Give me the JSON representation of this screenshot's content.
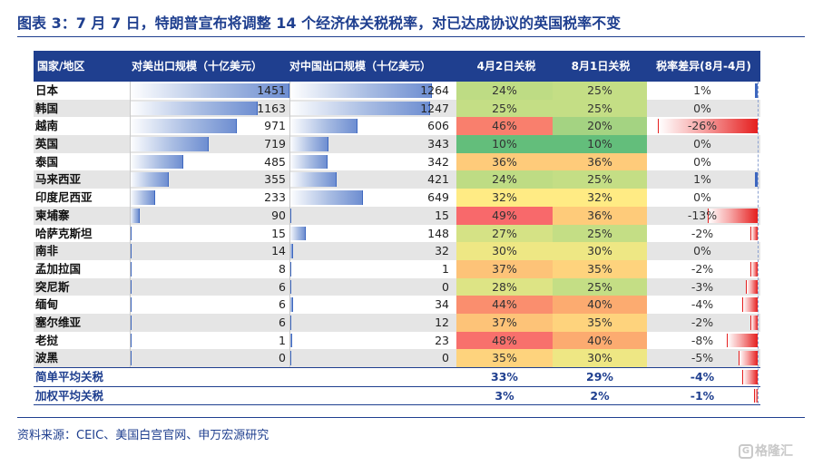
{
  "title": "图表 3：7 月 7 日，特朗普宣布将调整 14 个经济体关税税率，对已达成协议的英国税率不变",
  "headers": {
    "country": "国家/地区",
    "us_exports": "对美出口规模（十亿美元）",
    "cn_exports": "对中国出口规模（十亿美元）",
    "apr2": "4月2日关税",
    "aug1": "8月1日关税",
    "diff": "税率差异(8月-4月)"
  },
  "rows": [
    {
      "name": "日本",
      "us": "1451",
      "cn": "1264",
      "apr2": "24%",
      "aug1": "25%",
      "diff": "1%"
    },
    {
      "name": "韩国",
      "us": "1163",
      "cn": "1247",
      "apr2": "25%",
      "aug1": "25%",
      "diff": "0%"
    },
    {
      "name": "越南",
      "us": "971",
      "cn": "606",
      "apr2": "46%",
      "aug1": "20%",
      "diff": "-26%"
    },
    {
      "name": "英国",
      "us": "719",
      "cn": "343",
      "apr2": "10%",
      "aug1": "10%",
      "diff": "0%"
    },
    {
      "name": "泰国",
      "us": "485",
      "cn": "342",
      "apr2": "36%",
      "aug1": "36%",
      "diff": "0%"
    },
    {
      "name": "马来西亚",
      "us": "355",
      "cn": "421",
      "apr2": "24%",
      "aug1": "25%",
      "diff": "1%"
    },
    {
      "name": "印度尼西亚",
      "us": "233",
      "cn": "649",
      "apr2": "32%",
      "aug1": "32%",
      "diff": "0%"
    },
    {
      "name": "柬埔寨",
      "us": "90",
      "cn": "15",
      "apr2": "49%",
      "aug1": "36%",
      "diff": "-13%"
    },
    {
      "name": "哈萨克斯坦",
      "us": "15",
      "cn": "148",
      "apr2": "27%",
      "aug1": "25%",
      "diff": "-2%"
    },
    {
      "name": "南非",
      "us": "14",
      "cn": "32",
      "apr2": "30%",
      "aug1": "30%",
      "diff": "0%"
    },
    {
      "name": "孟加拉国",
      "us": "8",
      "cn": "1",
      "apr2": "37%",
      "aug1": "35%",
      "diff": "-2%"
    },
    {
      "name": "突尼斯",
      "us": "6",
      "cn": "0",
      "apr2": "28%",
      "aug1": "25%",
      "diff": "-3%"
    },
    {
      "name": "缅甸",
      "us": "6",
      "cn": "34",
      "apr2": "44%",
      "aug1": "40%",
      "diff": "-4%"
    },
    {
      "name": "塞尔维亚",
      "us": "6",
      "cn": "12",
      "apr2": "37%",
      "aug1": "35%",
      "diff": "-2%"
    },
    {
      "name": "老挝",
      "us": "1",
      "cn": "23",
      "apr2": "48%",
      "aug1": "40%",
      "diff": "-8%"
    },
    {
      "name": "波黑",
      "us": "0",
      "cn": "0",
      "apr2": "35%",
      "aug1": "30%",
      "diff": "-5%"
    }
  ],
  "summary": [
    {
      "name": "简单平均关税",
      "apr2": "33%",
      "aug1": "29%",
      "diff": "-4%"
    },
    {
      "name": "加权平均关税",
      "apr2": "3%",
      "aug1": "2%",
      "diff": "-1%"
    }
  ],
  "source": "资料来源：CEIC、美国白宫官网、申万宏源研究",
  "watermark": "格隆汇",
  "colors": {
    "brand_blue": "#1f3f8f",
    "bar_blue": "#3d67bf",
    "diff_red": "#e51f1f"
  }
}
